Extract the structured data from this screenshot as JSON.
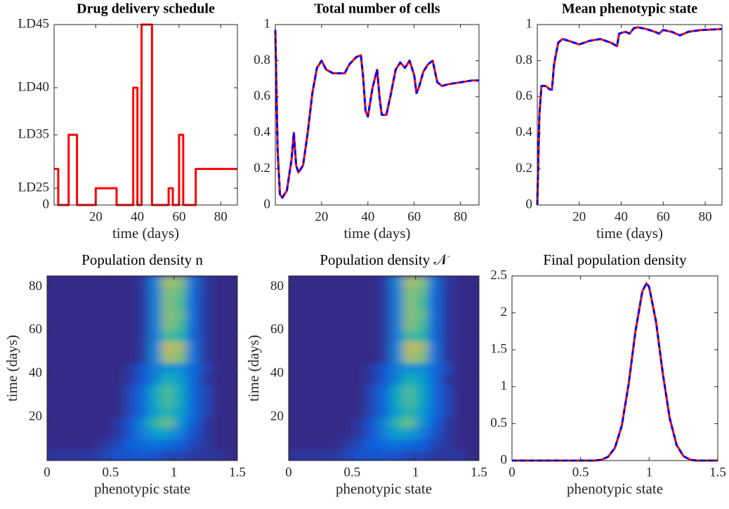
{
  "chart_data": [
    {
      "type": "line",
      "title": "Drug delivery schedule",
      "xlabel": "time (days)",
      "x": [
        0,
        2,
        2,
        7,
        7,
        11,
        11,
        20,
        20,
        30,
        30,
        38,
        38,
        40,
        40,
        42,
        42,
        47,
        47,
        55,
        55,
        57,
        57,
        60,
        60,
        62,
        62,
        68,
        68,
        88
      ],
      "series": [
        {
          "color": "#ff0000",
          "values": [
            0.2,
            0.2,
            0,
            0,
            0.389,
            0.389,
            0,
            0,
            0.093,
            0.093,
            0,
            0,
            0.65,
            0.65,
            0,
            0,
            1,
            1,
            0,
            0,
            0.093,
            0.093,
            0,
            0,
            0.389,
            0.389,
            0,
            0,
            0.2,
            0.2
          ]
        }
      ],
      "xlim": [
        0,
        88
      ],
      "xticks": [
        20,
        40,
        60,
        80
      ],
      "ylim": [
        0,
        1
      ],
      "yticks": [
        0,
        {
          "value": 0.093,
          "label": "LD25"
        },
        {
          "value": 0.389,
          "label": "LD35"
        },
        {
          "value": 0.65,
          "label": "LD40"
        },
        {
          "value": 1,
          "label": "LD45"
        }
      ]
    },
    {
      "type": "line",
      "title": "Total number of cells",
      "xlabel": "time (days)",
      "x": [
        0,
        1,
        2,
        3,
        5,
        7,
        8,
        9,
        10,
        12,
        14,
        16,
        18,
        20,
        22,
        25,
        30,
        32,
        35,
        37,
        38,
        39,
        40,
        42,
        44,
        45,
        46,
        48,
        50,
        52,
        54,
        56,
        58,
        60,
        61,
        62,
        64,
        66,
        68,
        70,
        72,
        75,
        80,
        85,
        88
      ],
      "series": [
        {
          "color": "#ff0000",
          "values": [
            0.97,
            0.3,
            0.06,
            0.04,
            0.08,
            0.25,
            0.4,
            0.22,
            0.18,
            0.22,
            0.4,
            0.62,
            0.76,
            0.8,
            0.75,
            0.73,
            0.73,
            0.78,
            0.82,
            0.83,
            0.7,
            0.52,
            0.49,
            0.65,
            0.75,
            0.6,
            0.5,
            0.5,
            0.62,
            0.75,
            0.79,
            0.76,
            0.8,
            0.72,
            0.62,
            0.65,
            0.74,
            0.78,
            0.8,
            0.68,
            0.66,
            0.67,
            0.68,
            0.69,
            0.69
          ]
        },
        {
          "color": "#0000ff",
          "dashed": true,
          "values": [
            0.97,
            0.3,
            0.06,
            0.04,
            0.08,
            0.25,
            0.4,
            0.22,
            0.18,
            0.22,
            0.4,
            0.62,
            0.76,
            0.8,
            0.75,
            0.73,
            0.73,
            0.78,
            0.82,
            0.83,
            0.7,
            0.52,
            0.49,
            0.65,
            0.75,
            0.6,
            0.5,
            0.5,
            0.62,
            0.75,
            0.79,
            0.76,
            0.8,
            0.72,
            0.62,
            0.65,
            0.74,
            0.78,
            0.8,
            0.68,
            0.66,
            0.67,
            0.68,
            0.69,
            0.69
          ]
        }
      ],
      "xlim": [
        0,
        88
      ],
      "xticks": [
        20,
        40,
        60,
        80
      ],
      "ylim": [
        0,
        1
      ],
      "yticks": [
        0,
        0.2,
        0.4,
        0.6,
        0.8,
        1
      ]
    },
    {
      "type": "line",
      "title": "Mean phenotypic state",
      "xlabel": "time (days)",
      "x": [
        0,
        1,
        2,
        4,
        6,
        7,
        8,
        10,
        12,
        15,
        20,
        25,
        30,
        35,
        38,
        39,
        42,
        44,
        46,
        48,
        52,
        56,
        58,
        60,
        64,
        68,
        72,
        78,
        88
      ],
      "series": [
        {
          "color": "#ff0000",
          "values": [
            0,
            0.5,
            0.66,
            0.66,
            0.64,
            0.64,
            0.78,
            0.9,
            0.92,
            0.91,
            0.89,
            0.91,
            0.92,
            0.9,
            0.88,
            0.95,
            0.96,
            0.95,
            0.98,
            0.985,
            0.975,
            0.96,
            0.95,
            0.97,
            0.96,
            0.94,
            0.96,
            0.97,
            0.975
          ]
        },
        {
          "color": "#0000ff",
          "dashed": true,
          "values": [
            0,
            0.5,
            0.66,
            0.66,
            0.64,
            0.64,
            0.78,
            0.9,
            0.92,
            0.91,
            0.89,
            0.91,
            0.92,
            0.9,
            0.88,
            0.95,
            0.96,
            0.95,
            0.98,
            0.985,
            0.975,
            0.96,
            0.95,
            0.97,
            0.96,
            0.94,
            0.96,
            0.97,
            0.975
          ]
        }
      ],
      "xlim": [
        0,
        88
      ],
      "xticks": [
        20,
        40,
        60,
        80
      ],
      "ylim": [
        0,
        1
      ],
      "yticks": [
        0,
        0.2,
        0.4,
        0.6,
        0.8,
        1
      ]
    },
    {
      "type": "heatmap",
      "title": "Population density n",
      "xlabel": "phenotypic state",
      "ylabel": "time (days)",
      "x": [
        0.05,
        0.15,
        0.25,
        0.35,
        0.45,
        0.55,
        0.65,
        0.75,
        0.85,
        0.95,
        1.05,
        1.15,
        1.25,
        1.35,
        1.45
      ],
      "y": [
        2.5,
        7.5,
        12.5,
        17.5,
        22.5,
        27.5,
        32.5,
        37.5,
        42.5,
        47.5,
        52.5,
        57.5,
        62.5,
        67.5,
        72.5,
        77.5,
        82.5
      ],
      "z": [
        [
          0.1,
          0.1,
          0.1,
          0.1,
          0.2,
          0.3,
          0.3,
          0.3,
          0.3,
          0.2,
          0.2,
          0.1,
          0.1,
          0.1,
          0
        ],
        [
          0,
          0,
          0,
          0,
          0.1,
          0.2,
          0.4,
          0.5,
          0.6,
          0.5,
          0.4,
          0.2,
          0.1,
          0,
          0
        ],
        [
          0,
          0,
          0,
          0,
          0,
          0.1,
          0.3,
          0.7,
          1.1,
          1.1,
          0.7,
          0.3,
          0.1,
          0,
          0
        ],
        [
          0,
          0,
          0,
          0,
          0,
          0.1,
          0.3,
          0.8,
          1.4,
          1.6,
          1.0,
          0.4,
          0.1,
          0,
          0
        ],
        [
          0,
          0,
          0,
          0,
          0,
          0,
          0.2,
          0.5,
          1.1,
          1.4,
          1.1,
          0.5,
          0.2,
          0,
          0
        ],
        [
          0,
          0,
          0,
          0,
          0,
          0,
          0.2,
          0.5,
          1.2,
          1.5,
          1.2,
          0.5,
          0.2,
          0,
          0
        ],
        [
          0,
          0,
          0,
          0,
          0,
          0,
          0.2,
          0.5,
          1.2,
          1.5,
          1.2,
          0.5,
          0.2,
          0,
          0
        ],
        [
          0,
          0,
          0,
          0,
          0,
          0,
          0.1,
          0.3,
          0.8,
          1.3,
          1.1,
          0.5,
          0.1,
          0,
          0
        ],
        [
          0,
          0,
          0,
          0,
          0,
          0,
          0.1,
          0.3,
          0.7,
          1.0,
          0.9,
          0.5,
          0.2,
          0,
          0
        ],
        [
          0,
          0,
          0,
          0,
          0,
          0,
          0,
          0.1,
          0.8,
          1.8,
          1.7,
          0.6,
          0.1,
          0,
          0
        ],
        [
          0,
          0,
          0,
          0,
          0,
          0,
          0,
          0.1,
          0.8,
          1.9,
          1.8,
          0.6,
          0.1,
          0,
          0
        ],
        [
          0,
          0,
          0,
          0,
          0,
          0,
          0,
          0.1,
          0.7,
          1.5,
          1.4,
          0.5,
          0.1,
          0,
          0
        ],
        [
          0,
          0,
          0,
          0,
          0,
          0,
          0,
          0.1,
          0.7,
          1.7,
          1.5,
          0.5,
          0.1,
          0,
          0
        ],
        [
          0,
          0,
          0,
          0,
          0,
          0,
          0,
          0.1,
          0.7,
          1.7,
          1.6,
          0.5,
          0.1,
          0,
          0
        ],
        [
          0,
          0,
          0,
          0,
          0,
          0,
          0,
          0.1,
          0.7,
          1.7,
          1.5,
          0.5,
          0.1,
          0,
          0
        ],
        [
          0,
          0,
          0,
          0,
          0,
          0,
          0,
          0.1,
          0.7,
          1.7,
          1.6,
          0.5,
          0.1,
          0,
          0
        ],
        [
          0,
          0,
          0,
          0,
          0,
          0,
          0,
          0.1,
          0.8,
          1.8,
          1.7,
          0.6,
          0.1,
          0,
          0
        ]
      ],
      "zlim": [
        0,
        2.4
      ],
      "colormap": "parula",
      "xlim": [
        0,
        1.5
      ],
      "xticks": [
        0,
        0.5,
        1,
        1.5
      ],
      "ylim": [
        0,
        85
      ],
      "yticks": [
        20,
        40,
        60,
        80
      ]
    },
    {
      "type": "heatmap",
      "title": "Population density 𝒩",
      "xlabel": "phenotypic state",
      "ylabel": "time (days)",
      "x": [
        0.05,
        0.15,
        0.25,
        0.35,
        0.45,
        0.55,
        0.65,
        0.75,
        0.85,
        0.95,
        1.05,
        1.15,
        1.25,
        1.35,
        1.45
      ],
      "y": [
        2.5,
        7.5,
        12.5,
        17.5,
        22.5,
        27.5,
        32.5,
        37.5,
        42.5,
        47.5,
        52.5,
        57.5,
        62.5,
        67.5,
        72.5,
        77.5,
        82.5
      ],
      "z": [
        [
          0.1,
          0.1,
          0.1,
          0.1,
          0.2,
          0.3,
          0.3,
          0.3,
          0.3,
          0.2,
          0.2,
          0.1,
          0.1,
          0.1,
          0
        ],
        [
          0,
          0,
          0,
          0,
          0.1,
          0.2,
          0.4,
          0.5,
          0.6,
          0.5,
          0.4,
          0.2,
          0.1,
          0,
          0
        ],
        [
          0,
          0,
          0,
          0,
          0,
          0.1,
          0.3,
          0.7,
          1.1,
          1.1,
          0.7,
          0.3,
          0.1,
          0,
          0
        ],
        [
          0,
          0,
          0,
          0,
          0,
          0.1,
          0.3,
          0.8,
          1.4,
          1.6,
          1.0,
          0.4,
          0.1,
          0,
          0
        ],
        [
          0,
          0,
          0,
          0,
          0,
          0,
          0.2,
          0.5,
          1.1,
          1.4,
          1.1,
          0.5,
          0.2,
          0,
          0
        ],
        [
          0,
          0,
          0,
          0,
          0,
          0,
          0.2,
          0.5,
          1.2,
          1.5,
          1.2,
          0.5,
          0.2,
          0,
          0
        ],
        [
          0,
          0,
          0,
          0,
          0,
          0,
          0.2,
          0.5,
          1.2,
          1.5,
          1.2,
          0.5,
          0.2,
          0,
          0
        ],
        [
          0,
          0,
          0,
          0,
          0,
          0,
          0.1,
          0.3,
          0.8,
          1.3,
          1.1,
          0.5,
          0.1,
          0,
          0
        ],
        [
          0,
          0,
          0,
          0,
          0,
          0,
          0.1,
          0.3,
          0.7,
          1.0,
          0.9,
          0.5,
          0.2,
          0,
          0
        ],
        [
          0,
          0,
          0,
          0,
          0,
          0,
          0,
          0.1,
          0.8,
          1.8,
          1.7,
          0.6,
          0.1,
          0,
          0
        ],
        [
          0,
          0,
          0,
          0,
          0,
          0,
          0,
          0.1,
          0.8,
          1.9,
          1.8,
          0.6,
          0.1,
          0,
          0
        ],
        [
          0,
          0,
          0,
          0,
          0,
          0,
          0,
          0.1,
          0.7,
          1.5,
          1.4,
          0.5,
          0.1,
          0,
          0
        ],
        [
          0,
          0,
          0,
          0,
          0,
          0,
          0,
          0.1,
          0.7,
          1.7,
          1.5,
          0.5,
          0.1,
          0,
          0
        ],
        [
          0,
          0,
          0,
          0,
          0,
          0,
          0,
          0.1,
          0.7,
          1.7,
          1.6,
          0.5,
          0.1,
          0,
          0
        ],
        [
          0,
          0,
          0,
          0,
          0,
          0,
          0,
          0.1,
          0.7,
          1.7,
          1.5,
          0.5,
          0.1,
          0,
          0
        ],
        [
          0,
          0,
          0,
          0,
          0,
          0,
          0,
          0.1,
          0.7,
          1.7,
          1.6,
          0.5,
          0.1,
          0,
          0
        ],
        [
          0,
          0,
          0,
          0,
          0,
          0,
          0,
          0.1,
          0.8,
          1.8,
          1.7,
          0.6,
          0.1,
          0,
          0
        ]
      ],
      "zlim": [
        0,
        2.4
      ],
      "colormap": "parula",
      "xlim": [
        0,
        1.5
      ],
      "xticks": [
        0,
        0.5,
        1,
        1.5
      ],
      "ylim": [
        0,
        85
      ],
      "yticks": [
        20,
        40,
        60,
        80
      ]
    },
    {
      "type": "line",
      "title": "Final population density",
      "xlabel": "phenotypic state",
      "x": [
        0,
        0.2,
        0.4,
        0.55,
        0.6,
        0.65,
        0.7,
        0.75,
        0.8,
        0.85,
        0.9,
        0.95,
        0.98,
        1.0,
        1.05,
        1.1,
        1.15,
        1.2,
        1.25,
        1.3,
        1.35,
        1.4,
        1.5
      ],
      "series": [
        {
          "color": "#ff0000",
          "values": [
            0,
            0,
            0,
            0,
            0,
            0.01,
            0.05,
            0.17,
            0.47,
            1.03,
            1.75,
            2.29,
            2.4,
            2.35,
            1.88,
            1.17,
            0.57,
            0.21,
            0.06,
            0.01,
            0,
            0,
            0
          ]
        },
        {
          "color": "#0000ff",
          "dashed": true,
          "values": [
            0,
            0,
            0,
            0,
            0,
            0.01,
            0.05,
            0.17,
            0.47,
            1.03,
            1.75,
            2.29,
            2.4,
            2.35,
            1.88,
            1.17,
            0.57,
            0.21,
            0.06,
            0.01,
            0,
            0,
            0
          ]
        }
      ],
      "xlim": [
        0,
        1.5
      ],
      "xticks": [
        0,
        0.5,
        1,
        1.5
      ],
      "ylim": [
        0,
        2.5
      ],
      "yticks": [
        0,
        0.5,
        1,
        1.5,
        2,
        2.5
      ]
    }
  ]
}
